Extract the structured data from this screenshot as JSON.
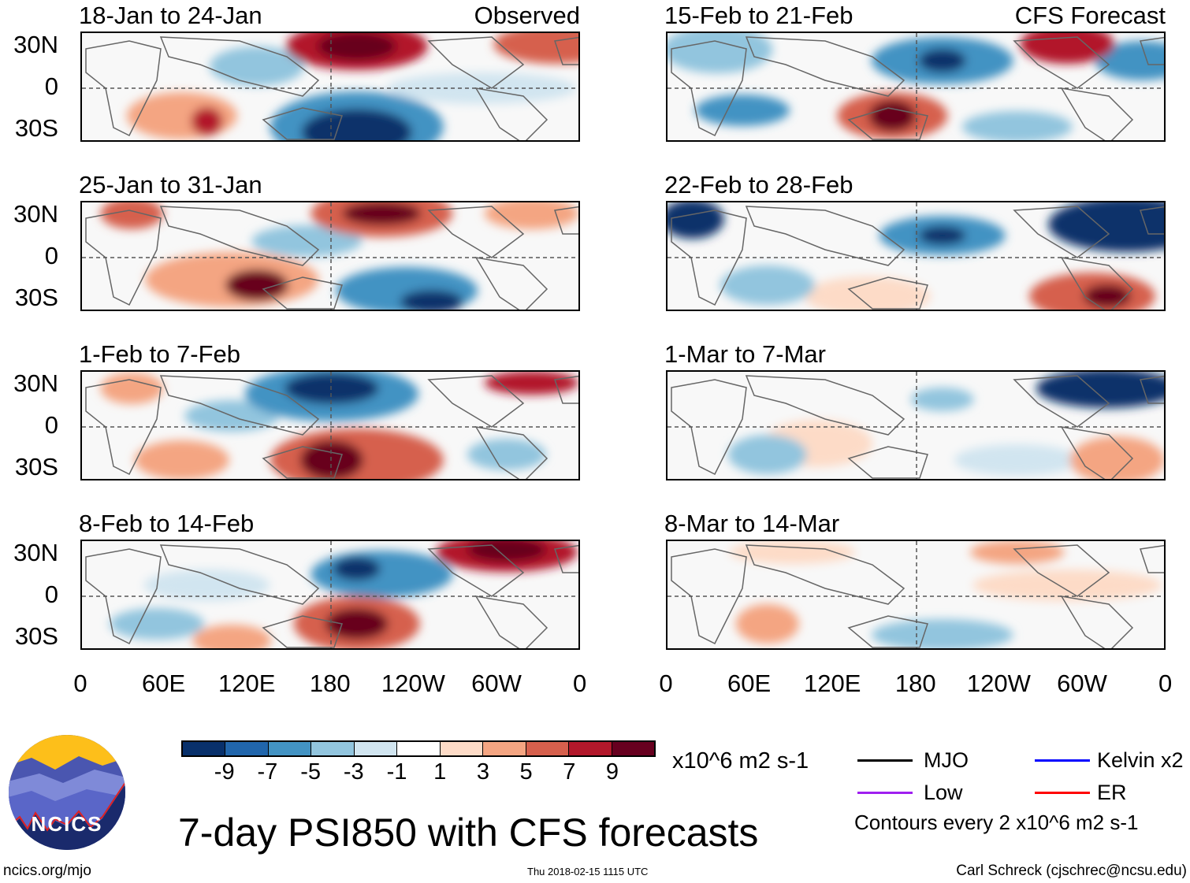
{
  "panels": [
    {
      "title": "18-Jan to 24-Jan",
      "label": "Observed"
    },
    {
      "title": "25-Jan to 31-Jan",
      "label": ""
    },
    {
      "title": "1-Feb to 7-Feb",
      "label": ""
    },
    {
      "title": "8-Feb to 14-Feb",
      "label": ""
    },
    {
      "title": "15-Feb to 21-Feb",
      "label": "CFS Forecast"
    },
    {
      "title": "22-Feb to 28-Feb",
      "label": ""
    },
    {
      "title": "1-Mar to 7-Mar",
      "label": ""
    },
    {
      "title": "8-Mar to 14-Mar",
      "label": ""
    }
  ],
  "lat_labels": [
    "30N",
    "0",
    "30S"
  ],
  "lon_labels": [
    "0",
    "60E",
    "120E",
    "180",
    "120W",
    "60W",
    "0"
  ],
  "colorbar": {
    "colors": [
      "#08306b",
      "#2166ac",
      "#4393c3",
      "#92c5de",
      "#d1e5f0",
      "#ffffff",
      "#fddbc7",
      "#f4a582",
      "#d6604d",
      "#b2182b",
      "#67001f"
    ],
    "labels": [
      "-9",
      "-7",
      "-5",
      "-3",
      "-1",
      "1",
      "3",
      "5",
      "7",
      "9"
    ],
    "units": "x10^6 m2 s-1"
  },
  "legend": {
    "items": [
      {
        "label": "MJO",
        "color": "#000000"
      },
      {
        "label": "Kelvin x2",
        "color": "#0000ff"
      },
      {
        "label": "Low",
        "color": "#a020f0"
      },
      {
        "label": "ER",
        "color": "#ff0000"
      }
    ],
    "note": "Contours every 2 x10^6 m2 s-1"
  },
  "title": "7-day PSI850 with CFS forecasts",
  "logo_text": "NCICS",
  "footer": {
    "url": "ncics.org/mjo",
    "timestamp": "Thu 2018-02-15 1115 UTC",
    "author": "Carl Schreck (cjschrec@ncsu.edu)"
  }
}
